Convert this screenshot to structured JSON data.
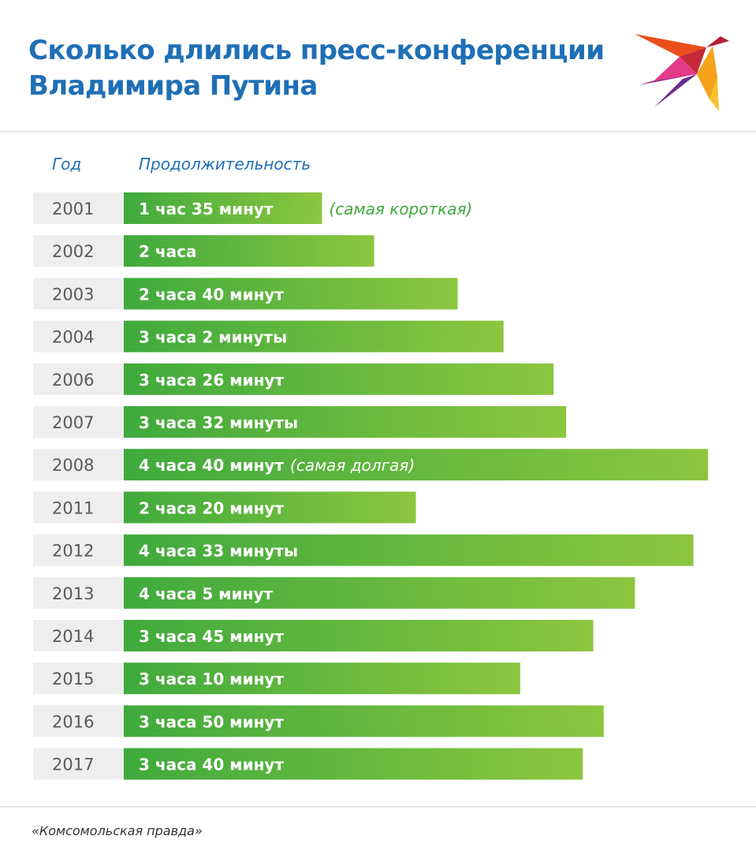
{
  "title": {
    "line1": "Сколько длились пресс-конференции",
    "line2": "Владимира Путина"
  },
  "logo": {
    "icon": "swallow-logo-icon"
  },
  "column_headers": {
    "year": "Год",
    "duration": "Продолжительность"
  },
  "colors": {
    "title": "#1f6fb5",
    "bar_start": "#3faa3d",
    "bar_end": "#8cc63f",
    "year_bg": "#eeeeef",
    "note": "#3faa3d"
  },
  "chart_data": {
    "type": "bar",
    "orientation": "horizontal",
    "value_unit": "minutes",
    "categories": [
      "2001",
      "2002",
      "2003",
      "2004",
      "2006",
      "2007",
      "2008",
      "2011",
      "2012",
      "2013",
      "2014",
      "2015",
      "2016",
      "2017"
    ],
    "values": [
      95,
      120,
      160,
      182,
      206,
      212,
      280,
      140,
      273,
      245,
      225,
      190,
      230,
      220
    ],
    "bar_labels": [
      "1 час 35 минут",
      "2 часа",
      "2 часа 40 минут",
      "3 часа 2 минуты",
      "3 часа 26 минут",
      "3 часа 32 минуты",
      "4 часа 40 минут",
      "2 часа 20 минут",
      "4 часа 33 минуты",
      "4 часа 5 минут",
      "3 часа 45 минут",
      "3 часа 10 минут",
      "3 часа 50 минут",
      "3 часа 40 минут"
    ],
    "annotations": [
      {
        "category": "2001",
        "text": "(самая короткая)"
      },
      {
        "category": "2008",
        "text": "(самая долгая)"
      }
    ],
    "grid": false,
    "legend": "none"
  },
  "source": "«Комсомольская правда»"
}
